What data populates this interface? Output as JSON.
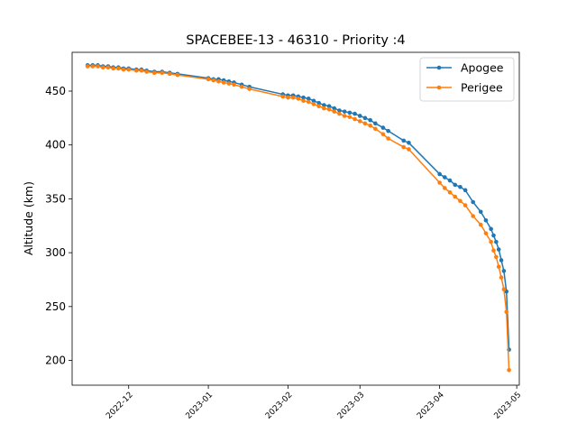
{
  "chart_data": {
    "type": "line",
    "title": "SPACEBEE-13 - 46310 - Priority :4",
    "xlabel": "",
    "ylabel": "Altitude (km)",
    "xlim": [
      "2022-11-09",
      "2023-05-02"
    ],
    "ylim": [
      177,
      486
    ],
    "grid": false,
    "legend_position": "top-right",
    "x_ticks": [
      "2022-12",
      "2023-01",
      "2023-02",
      "2023-03",
      "2023-04",
      "2023-05"
    ],
    "y_ticks": [
      200,
      250,
      300,
      350,
      400,
      450
    ],
    "series": [
      {
        "name": "Apogee",
        "color": "#1f77b4",
        "points": [
          [
            "2022-11-15",
            474
          ],
          [
            "2022-11-17",
            474
          ],
          [
            "2022-11-19",
            474
          ],
          [
            "2022-11-21",
            473
          ],
          [
            "2022-11-23",
            473
          ],
          [
            "2022-11-25",
            472
          ],
          [
            "2022-11-27",
            472
          ],
          [
            "2022-11-29",
            471
          ],
          [
            "2022-12-01",
            471
          ],
          [
            "2022-12-04",
            470
          ],
          [
            "2022-12-06",
            470
          ],
          [
            "2022-12-08",
            469
          ],
          [
            "2022-12-11",
            468
          ],
          [
            "2022-12-14",
            468
          ],
          [
            "2022-12-17",
            467
          ],
          [
            "2022-12-20",
            466
          ],
          [
            "2023-01-01",
            462
          ],
          [
            "2023-01-03",
            461
          ],
          [
            "2023-01-05",
            461
          ],
          [
            "2023-01-07",
            460
          ],
          [
            "2023-01-09",
            459
          ],
          [
            "2023-01-11",
            458
          ],
          [
            "2023-01-14",
            456
          ],
          [
            "2023-01-17",
            454
          ],
          [
            "2023-01-30",
            447
          ],
          [
            "2023-02-01",
            446
          ],
          [
            "2023-02-03",
            446
          ],
          [
            "2023-02-05",
            445
          ],
          [
            "2023-02-07",
            444
          ],
          [
            "2023-02-09",
            443
          ],
          [
            "2023-02-11",
            441
          ],
          [
            "2023-02-13",
            439
          ],
          [
            "2023-02-15",
            437
          ],
          [
            "2023-02-17",
            436
          ],
          [
            "2023-02-19",
            434
          ],
          [
            "2023-02-21",
            432
          ],
          [
            "2023-02-23",
            431
          ],
          [
            "2023-02-25",
            430
          ],
          [
            "2023-02-27",
            429
          ],
          [
            "2023-03-01",
            427
          ],
          [
            "2023-03-03",
            425
          ],
          [
            "2023-03-05",
            423
          ],
          [
            "2023-03-07",
            420
          ],
          [
            "2023-03-10",
            416
          ],
          [
            "2023-03-12",
            413
          ],
          [
            "2023-03-18",
            404
          ],
          [
            "2023-03-20",
            402
          ],
          [
            "2023-04-01",
            373
          ],
          [
            "2023-04-03",
            370
          ],
          [
            "2023-04-05",
            367
          ],
          [
            "2023-04-07",
            363
          ],
          [
            "2023-04-09",
            361
          ],
          [
            "2023-04-11",
            358
          ],
          [
            "2023-04-14",
            347
          ],
          [
            "2023-04-17",
            338
          ],
          [
            "2023-04-19",
            330
          ],
          [
            "2023-04-21",
            322
          ],
          [
            "2023-04-22",
            316
          ],
          [
            "2023-04-23",
            310
          ],
          [
            "2023-04-24",
            303
          ],
          [
            "2023-04-25",
            293
          ],
          [
            "2023-04-26",
            283
          ],
          [
            "2023-04-27",
            264
          ],
          [
            "2023-04-28",
            210
          ]
        ]
      },
      {
        "name": "Perigee",
        "color": "#ff7f0e",
        "points": [
          [
            "2022-11-15",
            473
          ],
          [
            "2022-11-17",
            473
          ],
          [
            "2022-11-19",
            473
          ],
          [
            "2022-11-21",
            472
          ],
          [
            "2022-11-23",
            472
          ],
          [
            "2022-11-25",
            471
          ],
          [
            "2022-11-27",
            471
          ],
          [
            "2022-11-29",
            470
          ],
          [
            "2022-12-01",
            470
          ],
          [
            "2022-12-04",
            469
          ],
          [
            "2022-12-06",
            469
          ],
          [
            "2022-12-08",
            468
          ],
          [
            "2022-12-11",
            467
          ],
          [
            "2022-12-14",
            467
          ],
          [
            "2022-12-17",
            466
          ],
          [
            "2022-12-20",
            465
          ],
          [
            "2023-01-01",
            461
          ],
          [
            "2023-01-03",
            460
          ],
          [
            "2023-01-05",
            459
          ],
          [
            "2023-01-07",
            458
          ],
          [
            "2023-01-09",
            457
          ],
          [
            "2023-01-11",
            456
          ],
          [
            "2023-01-14",
            454
          ],
          [
            "2023-01-17",
            452
          ],
          [
            "2023-01-30",
            445
          ],
          [
            "2023-02-01",
            444
          ],
          [
            "2023-02-03",
            444
          ],
          [
            "2023-02-05",
            443
          ],
          [
            "2023-02-07",
            441
          ],
          [
            "2023-02-09",
            440
          ],
          [
            "2023-02-11",
            438
          ],
          [
            "2023-02-13",
            436
          ],
          [
            "2023-02-15",
            434
          ],
          [
            "2023-02-17",
            433
          ],
          [
            "2023-02-19",
            431
          ],
          [
            "2023-02-21",
            429
          ],
          [
            "2023-02-23",
            427
          ],
          [
            "2023-02-25",
            426
          ],
          [
            "2023-02-27",
            424
          ],
          [
            "2023-03-01",
            422
          ],
          [
            "2023-03-03",
            420
          ],
          [
            "2023-03-05",
            418
          ],
          [
            "2023-03-07",
            415
          ],
          [
            "2023-03-10",
            410
          ],
          [
            "2023-03-12",
            406
          ],
          [
            "2023-03-18",
            398
          ],
          [
            "2023-03-20",
            396
          ],
          [
            "2023-04-01",
            365
          ],
          [
            "2023-04-03",
            360
          ],
          [
            "2023-04-05",
            356
          ],
          [
            "2023-04-07",
            352
          ],
          [
            "2023-04-09",
            348
          ],
          [
            "2023-04-11",
            344
          ],
          [
            "2023-04-14",
            334
          ],
          [
            "2023-04-17",
            326
          ],
          [
            "2023-04-19",
            318
          ],
          [
            "2023-04-21",
            310
          ],
          [
            "2023-04-22",
            302
          ],
          [
            "2023-04-23",
            296
          ],
          [
            "2023-04-24",
            287
          ],
          [
            "2023-04-25",
            277
          ],
          [
            "2023-04-26",
            266
          ],
          [
            "2023-04-27",
            245
          ],
          [
            "2023-04-28",
            191
          ]
        ]
      }
    ]
  }
}
